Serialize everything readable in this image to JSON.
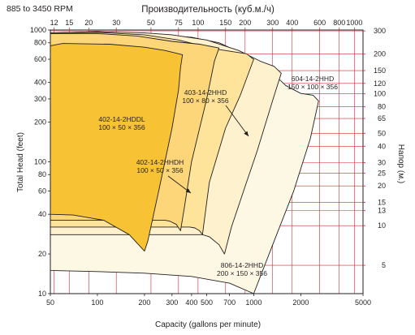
{
  "chart_data": {
    "type": "area",
    "title": "Производительность (куб.м./ч)",
    "subtitle": "885 to 3450 RPM",
    "xlabel": "Capacity (gallons per minute)",
    "ylabel": "Total Head (feet)",
    "ylabel_right": "Напор (м.)",
    "x_scale": "log",
    "y_scale": "log",
    "xlim": [
      50,
      5000
    ],
    "ylim": [
      10,
      1000
    ],
    "x_ticks": [
      "50",
      "100",
      "200",
      "300",
      "400",
      "500",
      "700",
      "1000",
      "2000",
      "5000"
    ],
    "x_tick_values": [
      50,
      100,
      200,
      300,
      400,
      500,
      700,
      1000,
      2000,
      5000
    ],
    "y_ticks": [
      "10",
      "20",
      "40",
      "60",
      "80",
      "100",
      "200",
      "300",
      "400",
      "600",
      "800",
      "1000"
    ],
    "y_tick_values": [
      10,
      20,
      40,
      60,
      80,
      100,
      200,
      300,
      400,
      600,
      800,
      1000
    ],
    "top_ticks": [
      "12",
      "15",
      "20",
      "30",
      "50",
      "75",
      "100",
      "150",
      "200",
      "300",
      "400",
      "600",
      "800",
      "1000"
    ],
    "top_tick_values": [
      12,
      15,
      20,
      30,
      50,
      75,
      100,
      150,
      200,
      300,
      400,
      600,
      800,
      1000
    ],
    "right_ticks": [
      "5",
      "10",
      "13",
      "15",
      "20",
      "25",
      "30",
      "40",
      "50",
      "65",
      "80",
      "100",
      "120",
      "150",
      "200",
      "300"
    ],
    "right_tick_values": [
      5,
      10,
      13,
      15,
      20,
      25,
      30,
      40,
      50,
      65,
      80,
      100,
      120,
      150,
      200,
      300
    ],
    "grid": true,
    "grid_color": "#d9272e",
    "series": [
      {
        "name": "806-14-2HHD",
        "size": "200 × 150 × 356",
        "color": "#fdf8e4",
        "upper": [
          [
            50,
            950
          ],
          [
            100,
            970
          ],
          [
            200,
            940
          ],
          [
            400,
            880
          ],
          [
            600,
            800
          ],
          [
            900,
            640
          ],
          [
            1300,
            480
          ],
          [
            1600,
            380
          ],
          [
            2000,
            330
          ],
          [
            2400,
            320
          ],
          [
            2600,
            290
          ]
        ],
        "right": [
          [
            2600,
            290
          ],
          [
            2300,
            150
          ],
          [
            1800,
            60
          ],
          [
            1350,
            25
          ],
          [
            1000,
            10
          ]
        ],
        "lower": [
          [
            50,
            15
          ],
          [
            100,
            14.7
          ],
          [
            200,
            14.3
          ],
          [
            400,
            13.5
          ],
          [
            700,
            12
          ],
          [
            1000,
            10
          ]
        ]
      },
      {
        "name": "604-14-2HHD",
        "size": "150 × 100 × 356",
        "color": "#fef1cd",
        "upper": [
          [
            50,
            950
          ],
          [
            100,
            970
          ],
          [
            200,
            950
          ],
          [
            300,
            920
          ],
          [
            500,
            840
          ],
          [
            800,
            700
          ],
          [
            1100,
            580
          ],
          [
            1350,
            530
          ],
          [
            1500,
            470
          ]
        ],
        "right": [
          [
            1500,
            470
          ],
          [
            1330,
            300
          ],
          [
            1050,
            120
          ],
          [
            880,
            65
          ],
          [
            720,
            32
          ],
          [
            650,
            20
          ]
        ],
        "dip": [
          [
            650,
            20
          ],
          [
            600,
            23.5
          ],
          [
            520,
            27
          ],
          [
            470,
            28
          ]
        ]
      },
      {
        "name": "403-14-2HHD",
        "size": "100 × 80 × 356",
        "color": "#fde49a",
        "upper": [
          [
            50,
            950
          ],
          [
            100,
            960
          ],
          [
            200,
            920
          ],
          [
            330,
            840
          ],
          [
            560,
            720
          ],
          [
            900,
            660
          ],
          [
            1000,
            600
          ]
        ],
        "right": [
          [
            1000,
            600
          ],
          [
            820,
            320
          ],
          [
            660,
            180
          ],
          [
            520,
            70
          ],
          [
            470,
            28
          ]
        ],
        "dip": [
          [
            470,
            28
          ],
          [
            450,
            30
          ],
          [
            420,
            31.5
          ],
          [
            390,
            32
          ]
        ]
      },
      {
        "name": "402-14-2HHDH",
        "size": "100 × 50 × 356",
        "color": "#fcd678",
        "upper": [
          [
            50,
            940
          ],
          [
            100,
            940
          ],
          [
            180,
            900
          ],
          [
            300,
            820
          ],
          [
            450,
            780
          ],
          [
            600,
            730
          ]
        ],
        "right": [
          [
            600,
            730
          ],
          [
            560,
            580
          ],
          [
            500,
            300
          ],
          [
            400,
            100
          ],
          [
            360,
            45
          ],
          [
            340,
            30
          ]
        ],
        "dip": [
          [
            340,
            30
          ],
          [
            320,
            33.5
          ],
          [
            290,
            35.5
          ],
          [
            270,
            36
          ]
        ]
      },
      {
        "name": "402-14-2HDDL",
        "size": "100 × 50 × 356",
        "color": "#f7c334",
        "upper": [
          [
            50,
            760
          ],
          [
            60,
            790
          ],
          [
            120,
            780
          ],
          [
            200,
            740
          ],
          [
            270,
            700
          ],
          [
            350,
            650
          ]
        ],
        "right": [
          [
            350,
            650
          ],
          [
            340,
            520
          ],
          [
            330,
            350
          ],
          [
            300,
            180
          ],
          [
            250,
            65
          ],
          [
            210,
            25
          ],
          [
            200,
            21
          ]
        ],
        "dip": [
          [
            200,
            21
          ],
          [
            160,
            28
          ],
          [
            110,
            36
          ],
          [
            70,
            39.5
          ],
          [
            50,
            40
          ]
        ]
      }
    ],
    "annotations": [
      {
        "label": "402-14-2HDDL",
        "size": "100 × 50 × 356"
      },
      {
        "label": "403-14-2HHD",
        "size": "100 × 80 × 356"
      },
      {
        "label": "604-14-2HHD",
        "size": "150 × 100 × 356"
      },
      {
        "label": "402-14-2HHDH",
        "size": "100 × 50 × 356"
      },
      {
        "label": "806-14-2HHD",
        "size": "200 × 150 × 356"
      }
    ]
  }
}
